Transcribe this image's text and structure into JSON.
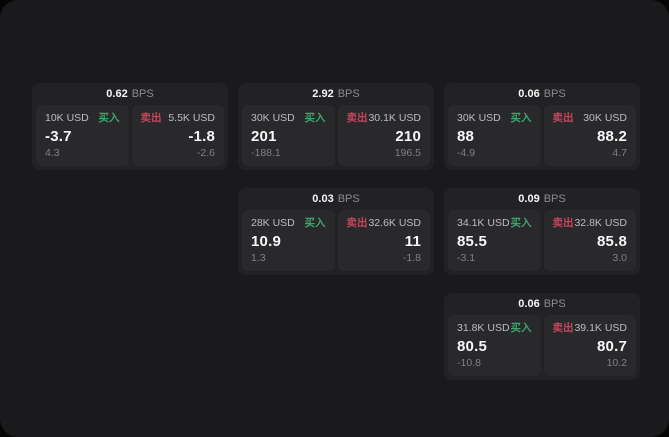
{
  "labels": {
    "buy": "买入",
    "sell": "卖出",
    "bps_unit": "BPS"
  },
  "colors": {
    "buy_accent": "#3ea46c",
    "sell_accent": "#c4455c",
    "window_bg": "#1a1a1c",
    "card_bg": "#222225",
    "panel_bg": "#29292c"
  },
  "cards": [
    {
      "grid": {
        "row": 1,
        "col": 1
      },
      "bps": "0.62",
      "buy": {
        "size": "10K USD",
        "value": "-3.7",
        "sub": "4.3"
      },
      "sell": {
        "size": "5.5K USD",
        "value": "-1.8",
        "sub": "-2.6"
      }
    },
    {
      "grid": {
        "row": 1,
        "col": 2
      },
      "bps": "2.92",
      "buy": {
        "size": "30K USD",
        "value": "201",
        "sub": "-188.1"
      },
      "sell": {
        "size": "30.1K USD",
        "value": "210",
        "sub": "196.5"
      }
    },
    {
      "grid": {
        "row": 1,
        "col": 3
      },
      "bps": "0.06",
      "buy": {
        "size": "30K USD",
        "value": "88",
        "sub": "-4.9"
      },
      "sell": {
        "size": "30K USD",
        "value": "88.2",
        "sub": "4.7"
      }
    },
    {
      "grid": {
        "row": 2,
        "col": 2
      },
      "bps": "0.03",
      "buy": {
        "size": "28K USD",
        "value": "10.9",
        "sub": "1.3"
      },
      "sell": {
        "size": "32.6K USD",
        "value": "11",
        "sub": "-1.8"
      }
    },
    {
      "grid": {
        "row": 2,
        "col": 3
      },
      "bps": "0.09",
      "buy": {
        "size": "34.1K USD",
        "value": "85.5",
        "sub": "-3.1"
      },
      "sell": {
        "size": "32.8K USD",
        "value": "85.8",
        "sub": "3.0"
      }
    },
    {
      "grid": {
        "row": 3,
        "col": 3
      },
      "bps": "0.06",
      "buy": {
        "size": "31.8K USD",
        "value": "80.5",
        "sub": "-10.8"
      },
      "sell": {
        "size": "39.1K USD",
        "value": "80.7",
        "sub": "10.2"
      }
    }
  ]
}
